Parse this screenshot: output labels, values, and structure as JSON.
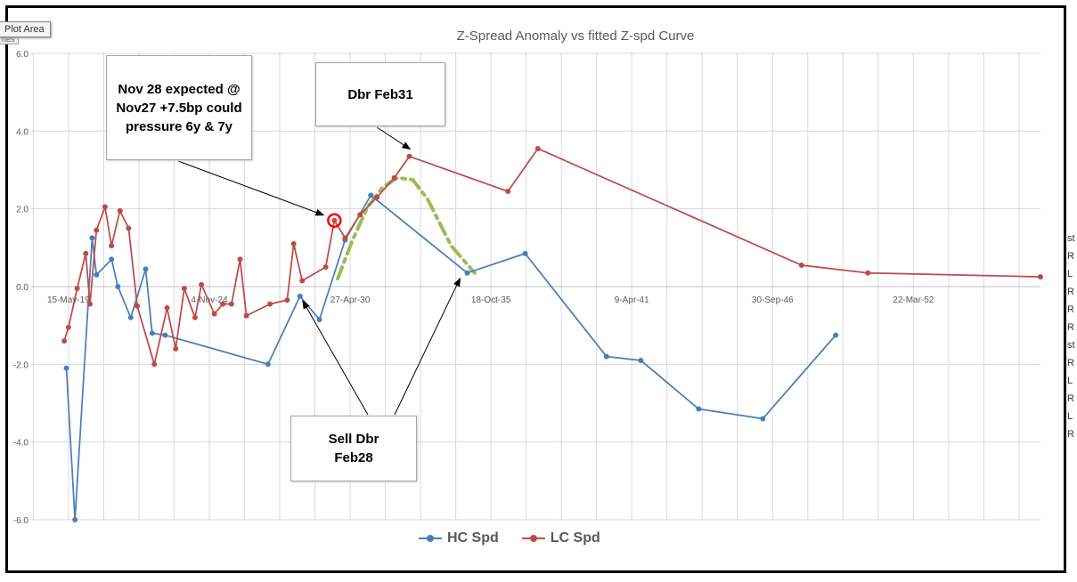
{
  "tooltip": {
    "label": "Plot Area",
    "sub": "nes"
  },
  "chart_data": {
    "type": "line",
    "title": "Z-Spread Anomaly vs fitted Z-spd Curve",
    "xlabel": "",
    "ylabel": "",
    "x_axis_type": "date",
    "xlim": [
      "2017-12-01",
      "2057-03-01"
    ],
    "ylim": [
      -6.0,
      6.0
    ],
    "yticks": [
      "6.0",
      "4.0",
      "2.0",
      "0.0",
      "-2.0",
      "-4.0",
      "-6.0"
    ],
    "xticks": [
      {
        "date": "2019-05-15",
        "label": "15-May-19"
      },
      {
        "date": "2024-11-04",
        "label": "4-Nov-24"
      },
      {
        "date": "2030-04-27",
        "label": "27-Apr-30"
      },
      {
        "date": "2035-10-18",
        "label": "18-Oct-35"
      },
      {
        "date": "2041-04-09",
        "label": "9-Apr-41"
      },
      {
        "date": "2046-09-30",
        "label": "30-Sep-46"
      },
      {
        "date": "2052-03-22",
        "label": "22-Mar-52"
      }
    ],
    "grid": true,
    "legend_position": "bottom",
    "series": [
      {
        "name": "HC Spd",
        "color": "#4a7ebb",
        "points": [
          [
            "2019-04-15",
            -2.1
          ],
          [
            "2019-08-15",
            -6.0
          ],
          [
            "2020-04-15",
            1.25
          ],
          [
            "2020-06-15",
            0.3
          ],
          [
            "2021-01-15",
            0.7
          ],
          [
            "2021-04-15",
            0.0
          ],
          [
            "2021-10-15",
            -0.8
          ],
          [
            "2022-05-15",
            0.45
          ],
          [
            "2022-08-15",
            -1.2
          ],
          [
            "2023-02-15",
            -1.25
          ],
          [
            "2027-02-15",
            -2.0
          ],
          [
            "2028-05-15",
            -0.25
          ],
          [
            "2029-02-15",
            -0.85
          ],
          [
            "2030-02-15",
            1.2
          ],
          [
            "2031-02-15",
            2.35
          ],
          [
            "2034-11-15",
            0.35
          ],
          [
            "2037-02-15",
            0.85
          ],
          [
            "2040-04-15",
            -1.8
          ],
          [
            "2041-08-15",
            -1.9
          ],
          [
            "2043-11-15",
            -3.15
          ],
          [
            "2046-05-15",
            -3.4
          ],
          [
            "2049-03-15",
            -1.25
          ]
        ]
      },
      {
        "name": "LC Spd",
        "color": "#be4b48",
        "points": [
          [
            "2019-03-15",
            -1.4
          ],
          [
            "2019-05-15",
            -1.05
          ],
          [
            "2019-09-15",
            -0.05
          ],
          [
            "2020-01-15",
            0.85
          ],
          [
            "2020-03-15",
            -0.45
          ],
          [
            "2020-06-15",
            1.45
          ],
          [
            "2020-10-15",
            2.05
          ],
          [
            "2021-01-15",
            1.05
          ],
          [
            "2021-05-15",
            1.95
          ],
          [
            "2021-09-15",
            1.5
          ],
          [
            "2022-01-15",
            -0.5
          ],
          [
            "2022-09-15",
            -2.0
          ],
          [
            "2023-03-15",
            -0.55
          ],
          [
            "2023-07-15",
            -1.6
          ],
          [
            "2023-11-15",
            -0.05
          ],
          [
            "2024-04-15",
            -0.8
          ],
          [
            "2024-07-15",
            0.05
          ],
          [
            "2025-01-15",
            -0.7
          ],
          [
            "2025-05-15",
            -0.45
          ],
          [
            "2025-09-15",
            -0.45
          ],
          [
            "2026-01-15",
            0.7
          ],
          [
            "2026-04-15",
            -0.75
          ],
          [
            "2027-03-15",
            -0.45
          ],
          [
            "2027-11-15",
            -0.35
          ],
          [
            "2028-02-15",
            1.1
          ],
          [
            "2028-06-15",
            0.15
          ],
          [
            "2029-05-15",
            0.5
          ],
          [
            "2029-09-15",
            1.7
          ],
          [
            "2030-02-15",
            1.25
          ],
          [
            "2030-09-15",
            1.85
          ],
          [
            "2031-05-15",
            2.3
          ],
          [
            "2032-01-15",
            2.8
          ],
          [
            "2032-08-15",
            3.35
          ],
          [
            "2036-06-15",
            2.45
          ],
          [
            "2037-08-15",
            3.55
          ],
          [
            "2047-11-15",
            0.55
          ],
          [
            "2050-06-15",
            0.35
          ],
          [
            "2057-03-01",
            0.25
          ]
        ]
      }
    ],
    "fitted_curve": {
      "color": "#9bbb59",
      "points": [
        [
          "2029-11-01",
          0.2
        ],
        [
          "2030-06-01",
          1.2
        ],
        [
          "2031-01-01",
          2.05
        ],
        [
          "2031-08-01",
          2.55
        ],
        [
          "2032-03-01",
          2.8
        ],
        [
          "2032-10-01",
          2.75
        ],
        [
          "2033-05-01",
          2.25
        ],
        [
          "2034-04-01",
          1.05
        ],
        [
          "2035-03-01",
          0.35
        ]
      ]
    },
    "highlight_point": {
      "date": "2029-09-15",
      "y": 1.7,
      "color": "#ff0000"
    },
    "annotations": [
      {
        "text": "Nov 28 expected @ Nov27 +7.5bp could pressure 6y & 7y"
      },
      {
        "text": "Dbr Feb31"
      },
      {
        "text": "Sell Dbr Feb28"
      }
    ]
  }
}
